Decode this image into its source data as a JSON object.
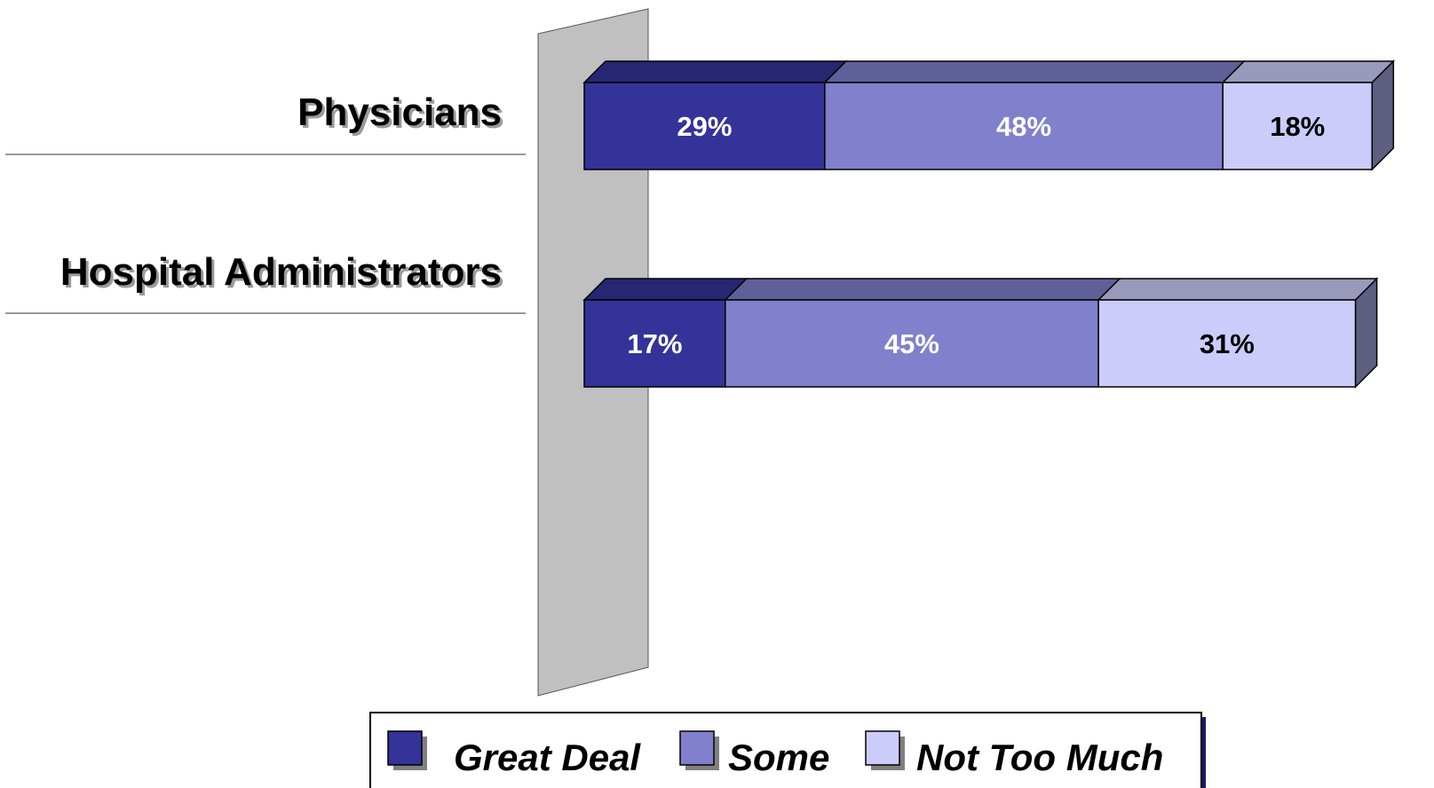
{
  "chart_data": {
    "type": "bar",
    "orientation": "horizontal",
    "stacked": true,
    "three_d": true,
    "categories": [
      "Physicians",
      "Hospital Administrators"
    ],
    "series": [
      {
        "name": "Great Deal",
        "values": [
          29,
          17
        ],
        "labels": [
          "29%",
          "17%"
        ],
        "color": "#343399",
        "label_color": "#ffffff"
      },
      {
        "name": "Some",
        "values": [
          48,
          45
        ],
        "labels": [
          "48%",
          "45%"
        ],
        "color": "#8080cc",
        "label_color": "#ffffff"
      },
      {
        "name": "Not Too Much",
        "values": [
          18,
          31
        ],
        "labels": [
          "18%",
          "31%"
        ],
        "color": "#ccccfb",
        "label_color": "#000000"
      }
    ],
    "xlim": [
      0,
      100
    ],
    "value_format": "percent",
    "grid": false,
    "legend_position": "bottom-center",
    "back_wall_color": "#c0c0c0"
  }
}
